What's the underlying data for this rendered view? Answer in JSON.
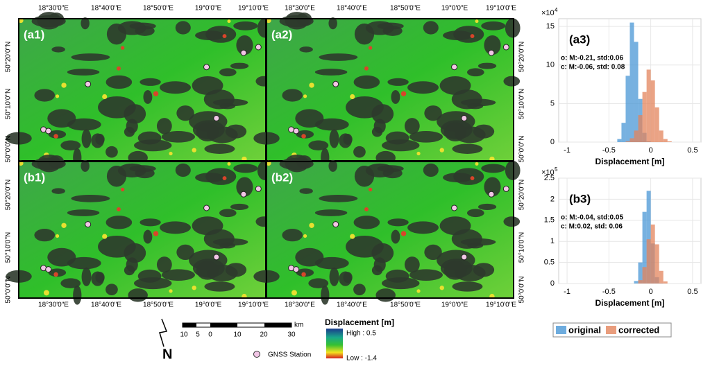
{
  "maps": {
    "panels": [
      "(a1)",
      "(a2)",
      "(b1)",
      "(b2)"
    ],
    "lon_labels": [
      "18°30'0\"E",
      "18°40'0\"E",
      "18°50'0\"E",
      "19°0'0\"E",
      "19°10'0\"E"
    ],
    "lat_labels": [
      "50°20'0\"N",
      "50°10'0\"N",
      "50°0'0\"N"
    ]
  },
  "legend": {
    "scale_bar": {
      "labels": [
        "10",
        "5",
        "0",
        "10",
        "20",
        "30"
      ],
      "unit": "km"
    },
    "north": "N",
    "gnss": "GNSS Station",
    "colorbar": {
      "title": "Displacement [m]",
      "high": "High : 0.5",
      "low": "Low : -1.4"
    }
  },
  "chart_data": [
    {
      "type": "histogram",
      "label": "(a3)",
      "y_scale": "×10",
      "y_scale_exponent": "4",
      "xlabel": "Displacement [m]",
      "annotations": [
        "o: M:-0.21, std:0.06",
        "c: M:-0.06, std: 0.08"
      ],
      "bins": [
        -0.45,
        -0.4,
        -0.35,
        -0.3,
        -0.25,
        -0.2,
        -0.15,
        -0.1,
        -0.05,
        0,
        0.05,
        0.1,
        0.15,
        0.2,
        0.25
      ],
      "series": [
        {
          "name": "original",
          "color": "#4a97d6",
          "values": [
            0,
            0.4,
            2.5,
            8.6,
            15.5,
            13,
            5.6,
            1.2,
            0.1,
            0,
            0,
            0,
            0,
            0
          ]
        },
        {
          "name": "corrected",
          "color": "#e3845c",
          "values": [
            0,
            0,
            0,
            0.1,
            0.5,
            1.5,
            3.5,
            6.5,
            9.4,
            8,
            4.5,
            1.5,
            0.4,
            0.1
          ]
        }
      ],
      "xlim": [
        -1.1,
        0.6
      ],
      "xticks": [
        -1,
        -0.5,
        0,
        0.5
      ],
      "ylim": [
        0,
        16
      ],
      "yticks": [
        0,
        5,
        10,
        15
      ],
      "grid": true
    },
    {
      "type": "histogram",
      "label": "(b3)",
      "y_scale": "×10",
      "y_scale_exponent": "5",
      "xlabel": "Displacement [m]",
      "annotations": [
        "o: M:-0.04, std:0.05",
        "c: M:0.02, std: 0.06"
      ],
      "bins": [
        -0.45,
        -0.4,
        -0.35,
        -0.3,
        -0.25,
        -0.2,
        -0.15,
        -0.1,
        -0.05,
        0,
        0.05,
        0.1,
        0.15,
        0.2,
        0.25
      ],
      "series": [
        {
          "name": "original",
          "color": "#4a97d6",
          "values": [
            0,
            0,
            0,
            0,
            0,
            0.06,
            0.5,
            1.7,
            2.2,
            0.95,
            0.15,
            0.01,
            0,
            0
          ]
        },
        {
          "name": "corrected",
          "color": "#e3845c",
          "values": [
            0,
            0,
            0,
            0,
            0,
            0,
            0.08,
            0.39,
            1.05,
            1.4,
            0.93,
            0.3,
            0.05,
            0
          ]
        }
      ],
      "xlim": [
        -1.1,
        0.6
      ],
      "xticks": [
        -1,
        -0.5,
        0,
        0.5
      ],
      "ylim": [
        0,
        2.5
      ],
      "yticks": [
        0,
        0.5,
        1,
        1.5,
        2,
        2.5
      ],
      "grid": true
    }
  ]
}
